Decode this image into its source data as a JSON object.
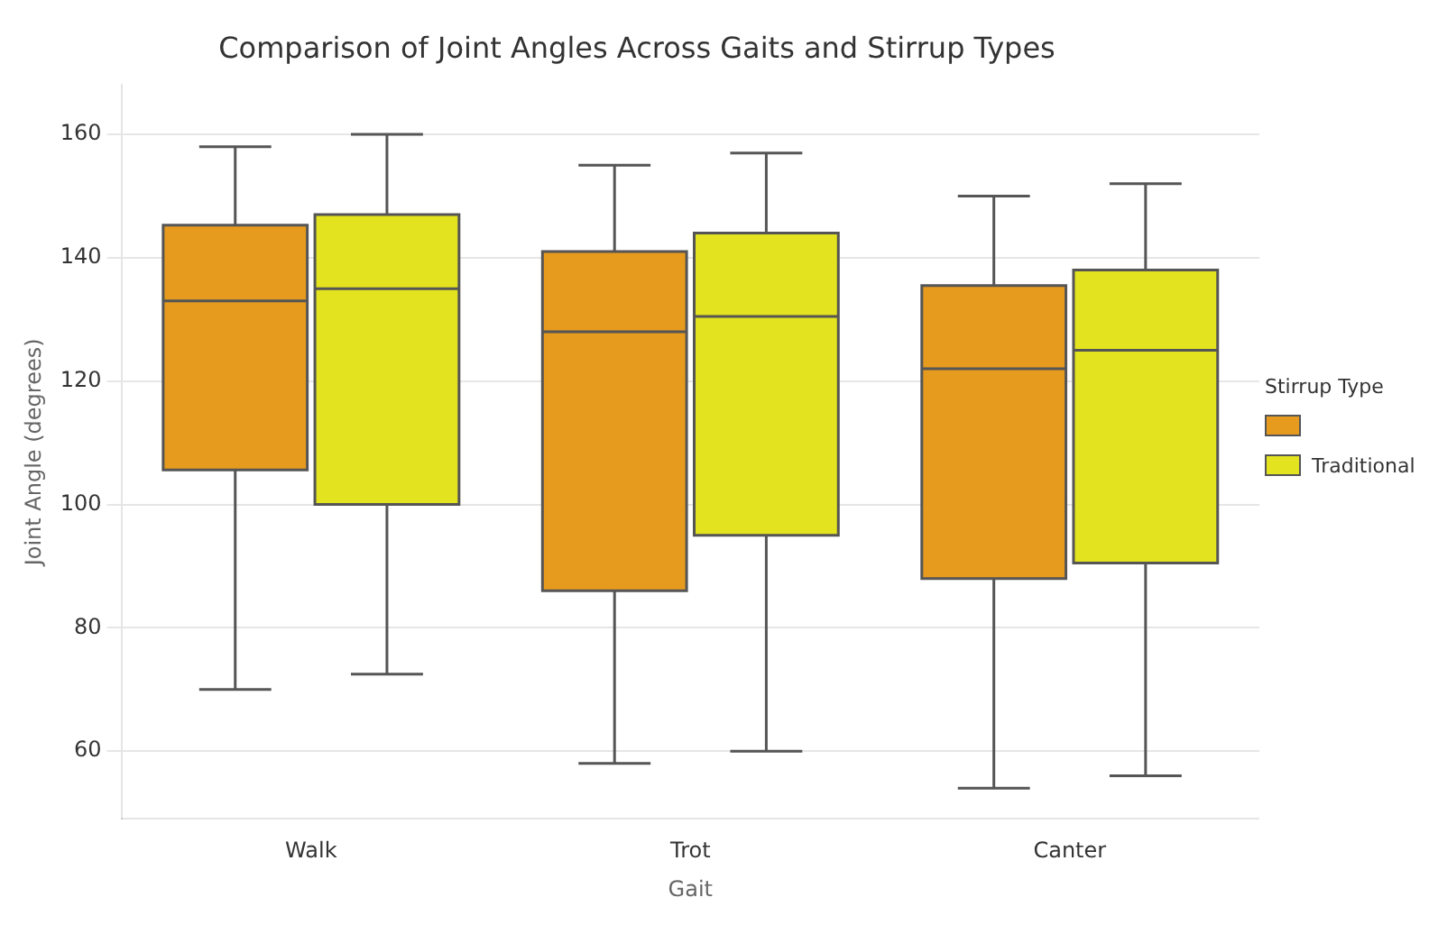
{
  "chart_data": {
    "type": "box",
    "title": "Comparison of Joint Angles Across Gaits and Stirrup Types",
    "xlabel": "Gait",
    "ylabel": "Joint Angle (degrees)",
    "legend_title": "Stirrup Type",
    "categories": [
      "Walk",
      "Trot",
      "Canter"
    ],
    "series": [
      {
        "color": "#e69b1f",
        "boxes": [
          {
            "low": 70,
            "q1": 105.6,
            "median": 133,
            "q3": 145.3,
            "high": 158
          },
          {
            "low": 58,
            "q1": 86,
            "median": 128,
            "q3": 141,
            "high": 155
          },
          {
            "low": 54,
            "q1": 88,
            "median": 122,
            "q3": 135.5,
            "high": 150
          }
        ]
      },
      {
        "name": "Traditional",
        "color": "#e3e31f",
        "boxes": [
          {
            "low": 72.5,
            "q1": 100,
            "median": 135,
            "q3": 147,
            "high": 160
          },
          {
            "low": 60,
            "q1": 95,
            "median": 130.5,
            "q3": 144,
            "high": 157
          },
          {
            "low": 56,
            "q1": 90.5,
            "median": 125,
            "q3": 138,
            "high": 152
          }
        ]
      }
    ],
    "ylim": [
      49,
      168
    ],
    "yticks": [
      60,
      80,
      100,
      120,
      140,
      160
    ],
    "grid": "y",
    "legend": "right"
  }
}
